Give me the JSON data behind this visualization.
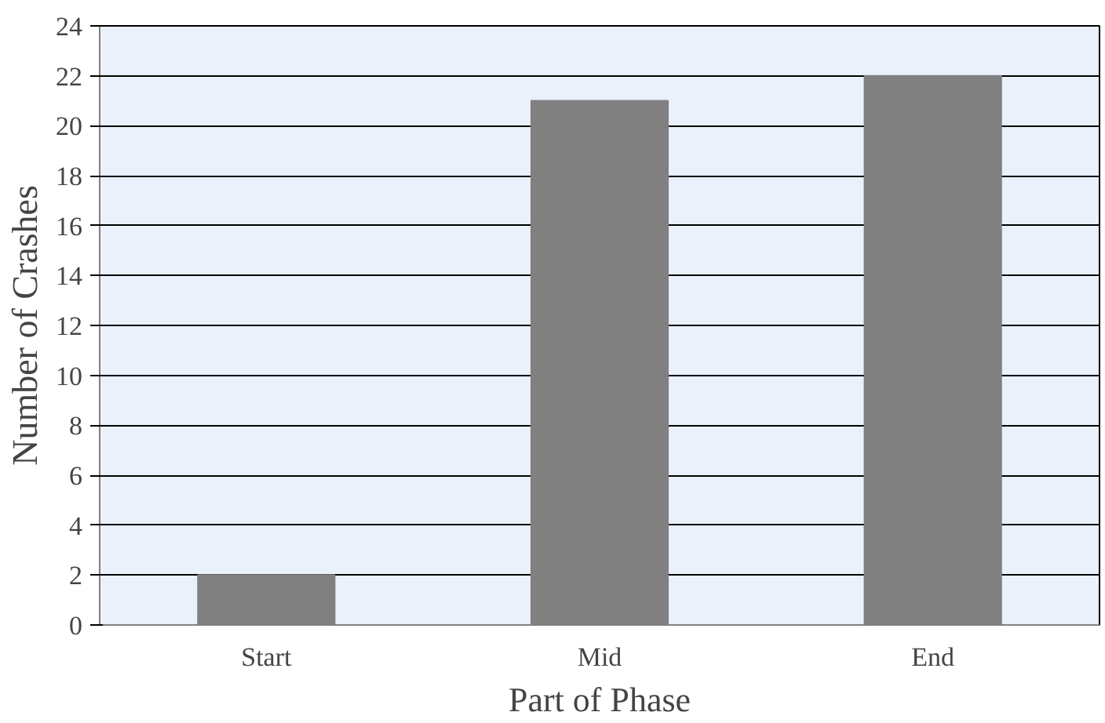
{
  "chart_data": {
    "type": "bar",
    "xlabel": "Part of Phase",
    "ylabel": "Number of Crashes",
    "categories": [
      "Start",
      "Mid",
      "End"
    ],
    "values": [
      2,
      21,
      22
    ],
    "color": "#808080",
    "ylim": [
      0,
      24
    ],
    "yticks": [
      0,
      2,
      4,
      6,
      8,
      10,
      12,
      14,
      16,
      18,
      20,
      22,
      24
    ],
    "grid": "y"
  }
}
